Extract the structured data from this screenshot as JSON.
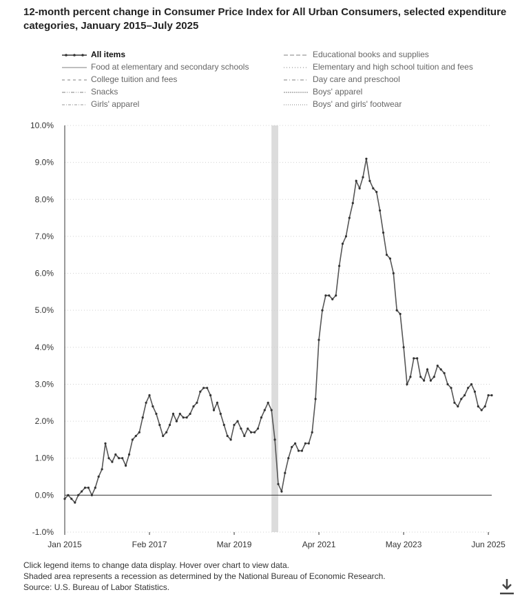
{
  "title": "12-month percent change in Consumer Price Index for All Urban Consumers, selected expenditure categories, January 2015–July 2025",
  "legend": [
    {
      "label": "All items",
      "style": "marker",
      "active": true
    },
    {
      "label": "Educational books and supplies",
      "style": "longdash",
      "active": false
    },
    {
      "label": "Food at elementary and secondary schools",
      "style": "solid",
      "active": false
    },
    {
      "label": "Elementary and high school tuition and fees",
      "style": "dot",
      "active": false
    },
    {
      "label": "College tuition and fees",
      "style": "dash",
      "active": false
    },
    {
      "label": "Day care and preschool",
      "style": "dashdot",
      "active": false
    },
    {
      "label": "Snacks",
      "style": "dashdotdot",
      "active": false
    },
    {
      "label": "Boys' apparel",
      "style": "densedash",
      "active": false
    },
    {
      "label": "Girls' apparel",
      "style": "dashdotthin",
      "active": false
    },
    {
      "label": "Boys' and girls' footwear",
      "style": "finedot",
      "active": false
    }
  ],
  "chart_data": {
    "type": "line",
    "series": [
      {
        "name": "All items",
        "color": "#555555",
        "start": "2015-01",
        "values": [
          -0.1,
          0.0,
          -0.1,
          -0.2,
          0.0,
          0.1,
          0.2,
          0.2,
          0.0,
          0.2,
          0.5,
          0.7,
          1.4,
          1.0,
          0.9,
          1.1,
          1.0,
          1.0,
          0.8,
          1.1,
          1.5,
          1.6,
          1.7,
          2.1,
          2.5,
          2.7,
          2.4,
          2.2,
          1.9,
          1.6,
          1.7,
          1.9,
          2.2,
          2.0,
          2.2,
          2.1,
          2.1,
          2.2,
          2.4,
          2.5,
          2.8,
          2.9,
          2.9,
          2.7,
          2.3,
          2.5,
          2.2,
          1.9,
          1.6,
          1.5,
          1.9,
          2.0,
          1.8,
          1.6,
          1.8,
          1.7,
          1.7,
          1.8,
          2.1,
          2.3,
          2.5,
          2.3,
          1.5,
          0.3,
          0.1,
          0.6,
          1.0,
          1.3,
          1.4,
          1.2,
          1.2,
          1.4,
          1.4,
          1.7,
          2.6,
          4.2,
          5.0,
          5.4,
          5.4,
          5.3,
          5.4,
          6.2,
          6.8,
          7.0,
          7.5,
          7.9,
          8.5,
          8.3,
          8.6,
          9.1,
          8.5,
          8.3,
          8.2,
          7.7,
          7.1,
          6.5,
          6.4,
          6.0,
          5.0,
          4.9,
          4.0,
          3.0,
          3.2,
          3.7,
          3.7,
          3.2,
          3.1,
          3.4,
          3.1,
          3.2,
          3.5,
          3.4,
          3.3,
          3.0,
          2.9,
          2.5,
          2.4,
          2.6,
          2.7,
          2.9,
          3.0,
          2.8,
          2.4,
          2.3,
          2.4,
          2.7,
          2.7
        ]
      }
    ],
    "xticks": [
      "Jan 2015",
      "Feb 2017",
      "Mar 2019",
      "Apr 2021",
      "May 2023",
      "Jun 2025"
    ],
    "xtick_dates": [
      "2015-01",
      "2017-02",
      "2019-03",
      "2021-04",
      "2023-05",
      "2025-06"
    ],
    "xrange": [
      "2015-01",
      "2025-07"
    ],
    "ylim": [
      -1.0,
      10.0
    ],
    "yticks": [
      "-1.0%",
      "0.0%",
      "1.0%",
      "2.0%",
      "3.0%",
      "4.0%",
      "5.0%",
      "6.0%",
      "7.0%",
      "8.0%",
      "9.0%",
      "10.0%"
    ],
    "ytick_values": [
      -1,
      0,
      1,
      2,
      3,
      4,
      5,
      6,
      7,
      8,
      9,
      10
    ],
    "recession": [
      "2020-02",
      "2020-04"
    ],
    "grid": true,
    "legend_position": "top"
  },
  "footer": {
    "line1": "Click legend items to change data display. Hover over chart to view data.",
    "line2": "Shaded area represents a recession as determined by the National Bureau of Economic Research.",
    "line3": "Source: U.S. Bureau of Labor Statistics."
  },
  "icons": {
    "download": "download-icon"
  }
}
